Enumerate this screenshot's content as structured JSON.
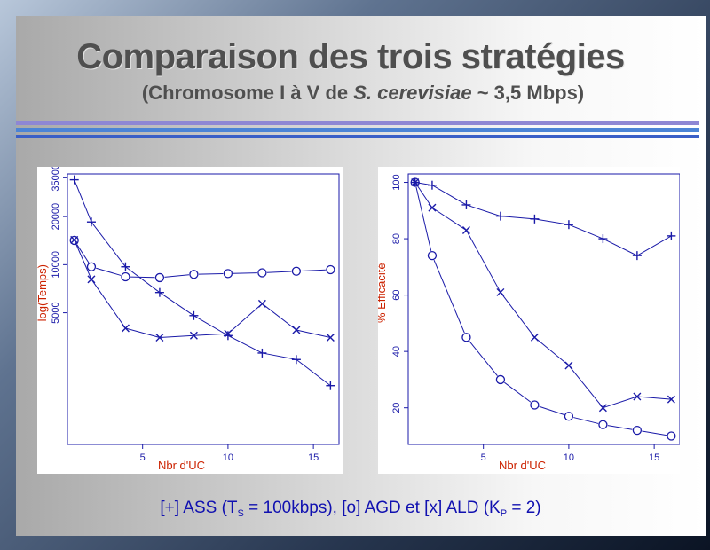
{
  "slide": {
    "title": "Comparaison des trois stratégies",
    "subtitle_pre": "(Chromosome I à V de ",
    "subtitle_italic": "S. cerevisiae",
    "subtitle_post": " ~ 3,5 Mbps)",
    "caption_1": "[+] ASS (T",
    "caption_sub_1": "S",
    "caption_2": " = 100kbps),  [o] AGD et  [x]  ALD (K",
    "caption_sub_2": "P",
    "caption_3": " = 2)"
  },
  "colors": {
    "series": "#1a1aa8",
    "axis_title": "#cc2200",
    "caption": "#1010b0"
  },
  "chart_data": [
    {
      "type": "line",
      "xlabel": "Nbr d'UC",
      "ylabel": "log(Temps)",
      "xlim": [
        0.6,
        16.5
      ],
      "ylim": [
        750,
        37000
      ],
      "log_y": true,
      "grid": false,
      "x_ticks": [
        5,
        10,
        15
      ],
      "y_ticks": [
        5000,
        10000,
        20000,
        35000
      ],
      "series": [
        {
          "name": "+",
          "marker": "plus",
          "x": [
            1,
            2,
            4,
            6,
            8,
            10,
            12,
            14,
            16
          ],
          "y": [
            34000,
            18500,
            9700,
            6700,
            4800,
            3600,
            2800,
            2550,
            1750
          ]
        },
        {
          "name": "o",
          "marker": "circle",
          "x": [
            1,
            2,
            4,
            6,
            8,
            10,
            12,
            14,
            16
          ],
          "y": [
            14200,
            9700,
            8400,
            8300,
            8700,
            8800,
            8900,
            9100,
            9300
          ]
        },
        {
          "name": "x",
          "marker": "cross",
          "x": [
            1,
            2,
            4,
            6,
            8,
            10,
            12,
            14,
            16
          ],
          "y": [
            14300,
            8100,
            4000,
            3500,
            3600,
            3700,
            5700,
            3900,
            3500
          ]
        }
      ]
    },
    {
      "type": "line",
      "xlabel": "Nbr d'UC",
      "ylabel": "% Efficacité",
      "xlim": [
        0.6,
        16.5
      ],
      "ylim": [
        7,
        103
      ],
      "log_y": false,
      "grid": false,
      "x_ticks": [
        5,
        10,
        15
      ],
      "y_ticks": [
        20,
        40,
        60,
        80,
        100
      ],
      "series": [
        {
          "name": "+",
          "marker": "plus",
          "x": [
            1,
            2,
            4,
            6,
            8,
            10,
            12,
            14,
            16
          ],
          "y": [
            100,
            99,
            92,
            88,
            87,
            85,
            80,
            74,
            81
          ]
        },
        {
          "name": "o",
          "marker": "circle",
          "x": [
            1,
            2,
            4,
            6,
            8,
            10,
            12,
            14,
            16
          ],
          "y": [
            100,
            74,
            45,
            30,
            21,
            17,
            14,
            12,
            10
          ]
        },
        {
          "name": "x",
          "marker": "cross",
          "x": [
            1,
            2,
            4,
            6,
            8,
            10,
            12,
            14,
            16
          ],
          "y": [
            100,
            91,
            83,
            61,
            45,
            35,
            20,
            24,
            23
          ]
        }
      ]
    }
  ]
}
